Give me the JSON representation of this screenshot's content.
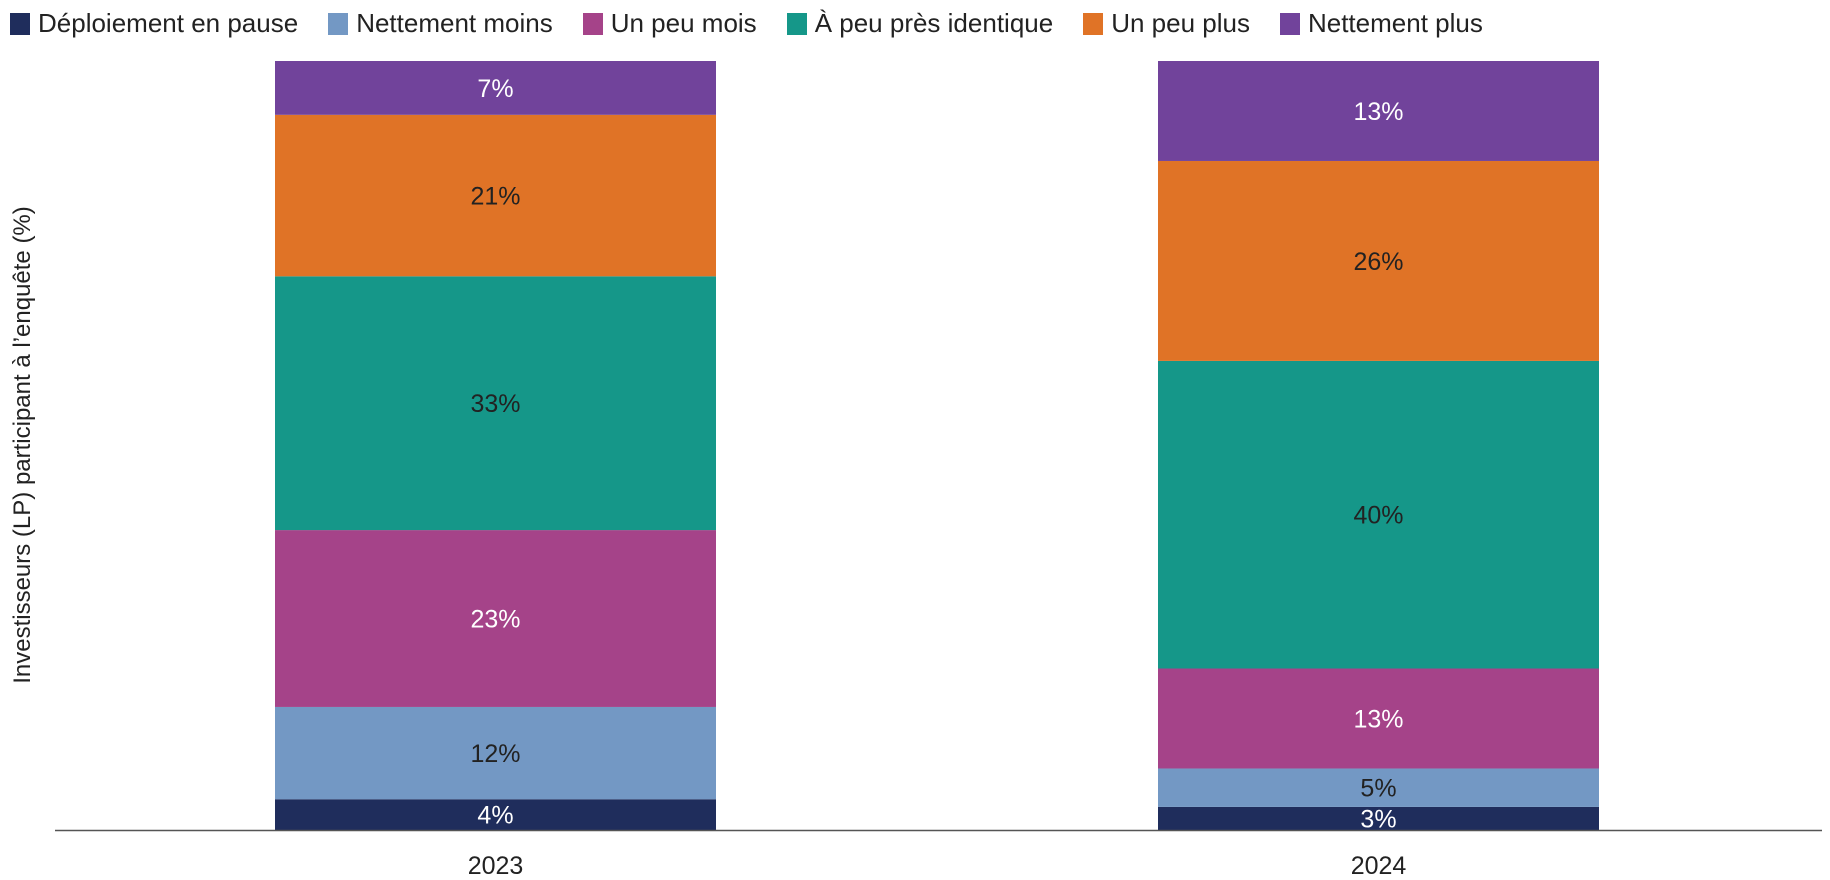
{
  "chart_data": {
    "type": "bar",
    "stacked": true,
    "title": "",
    "xlabel": "",
    "ylabel": "Investisseurs (LP) participant à l’enquête (%)",
    "ylim": [
      0,
      100
    ],
    "grid": false,
    "legend_position": "top",
    "categories": [
      "2023",
      "2024"
    ],
    "series": [
      {
        "name": "Déploiement en pause",
        "color": "#1f2d5c",
        "label_color": "#ffffff",
        "values": [
          4,
          3
        ]
      },
      {
        "name": "Nettement moins",
        "color": "#7398c4",
        "label_color": "#222222",
        "values": [
          12,
          5
        ]
      },
      {
        "name": "Un peu mois",
        "color": "#a54389",
        "label_color": "#ffffff",
        "values": [
          23,
          13
        ]
      },
      {
        "name": "À peu près identique",
        "color": "#159789",
        "label_color": "#222222",
        "values": [
          33,
          40
        ]
      },
      {
        "name": "Un peu plus",
        "color": "#e07326",
        "label_color": "#222222",
        "values": [
          21,
          26
        ]
      },
      {
        "name": "Nettement plus",
        "color": "#71439b",
        "label_color": "#ffffff",
        "values": [
          7,
          13
        ]
      }
    ],
    "data_labels": [
      [
        "4%",
        "3%"
      ],
      [
        "12%",
        "5%"
      ],
      [
        "23%",
        "13%"
      ],
      [
        "33%",
        "40%"
      ],
      [
        "21%",
        "26%"
      ],
      [
        "7%",
        "13%"
      ]
    ]
  }
}
